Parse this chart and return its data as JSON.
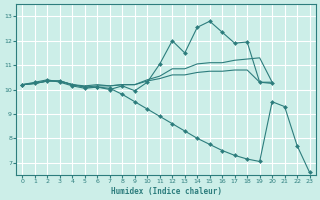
{
  "xlabel": "Humidex (Indice chaleur)",
  "bg_color": "#cceee8",
  "line_color": "#2d7d7d",
  "grid_color": "#ffffff",
  "xlim": [
    -0.5,
    23.5
  ],
  "ylim": [
    6.5,
    13.5
  ],
  "yticks": [
    7,
    8,
    9,
    10,
    11,
    12,
    13
  ],
  "xticks": [
    0,
    1,
    2,
    3,
    4,
    5,
    6,
    7,
    8,
    9,
    10,
    11,
    12,
    13,
    14,
    15,
    16,
    17,
    18,
    19,
    20,
    21,
    22,
    23
  ],
  "series": [
    {
      "x": [
        0,
        1,
        2,
        3,
        4,
        5,
        6,
        7,
        8,
        9,
        10,
        11,
        12,
        13,
        14,
        15,
        16,
        17,
        18,
        19,
        20
      ],
      "y": [
        10.2,
        10.3,
        10.4,
        10.3,
        10.15,
        10.05,
        10.1,
        10.0,
        10.15,
        9.95,
        10.3,
        11.05,
        12.0,
        11.5,
        12.55,
        12.8,
        12.35,
        11.9,
        11.95,
        10.3,
        10.25
      ],
      "marker": "D",
      "markersize": 2.0
    },
    {
      "x": [
        0,
        1,
        2,
        3,
        4,
        5,
        6,
        7,
        8,
        9,
        10,
        11,
        12,
        13,
        14,
        15,
        16,
        17,
        18,
        19,
        20
      ],
      "y": [
        10.2,
        10.25,
        10.35,
        10.35,
        10.2,
        10.15,
        10.2,
        10.15,
        10.2,
        10.2,
        10.4,
        10.55,
        10.85,
        10.85,
        11.05,
        11.1,
        11.1,
        11.2,
        11.25,
        11.3,
        10.3
      ],
      "marker": null,
      "markersize": 0
    },
    {
      "x": [
        0,
        1,
        2,
        3,
        4,
        5,
        6,
        7,
        8,
        9,
        10,
        11,
        12,
        13,
        14,
        15,
        16,
        17,
        18,
        19,
        20
      ],
      "y": [
        10.2,
        10.25,
        10.35,
        10.35,
        10.2,
        10.1,
        10.15,
        10.15,
        10.2,
        10.2,
        10.35,
        10.45,
        10.6,
        10.6,
        10.7,
        10.75,
        10.75,
        10.8,
        10.8,
        10.3,
        10.3
      ],
      "marker": null,
      "markersize": 0
    },
    {
      "x": [
        0,
        1,
        2,
        3,
        4,
        5,
        6,
        7,
        8,
        9,
        10,
        11,
        12,
        13,
        14,
        15,
        16,
        17,
        18,
        19,
        20,
        21,
        22,
        23
      ],
      "y": [
        10.2,
        10.25,
        10.35,
        10.35,
        10.2,
        10.1,
        10.1,
        10.05,
        9.8,
        9.5,
        9.2,
        8.9,
        8.6,
        8.3,
        8.0,
        7.75,
        7.5,
        7.3,
        7.15,
        7.05,
        9.5,
        9.3,
        7.7,
        6.6
      ],
      "marker": "D",
      "markersize": 2.0
    }
  ]
}
